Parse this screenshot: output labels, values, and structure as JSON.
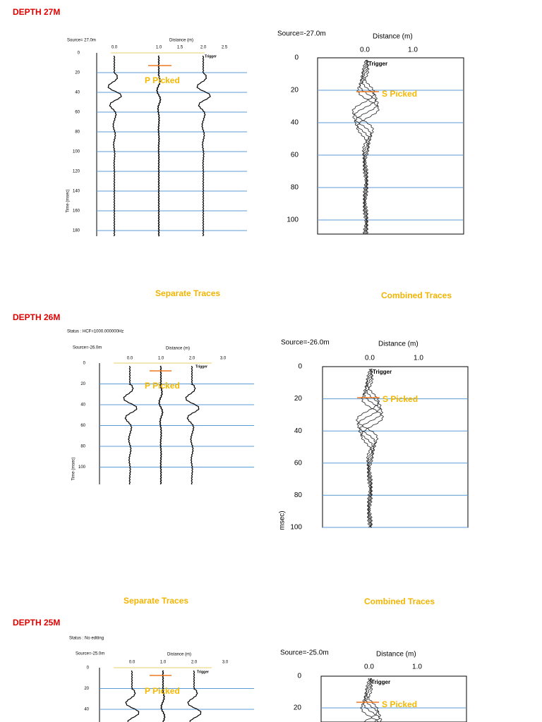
{
  "sections": [
    {
      "heading": "DEPTH 27M",
      "separate": {
        "source": "Source= 27.0m",
        "axis_label": "Distance (m)",
        "x_ticks": [
          "0.0",
          "1.0",
          "1.5",
          "2.0",
          "2.5"
        ],
        "y_ticks": [
          0,
          20,
          40,
          60,
          80,
          100,
          120,
          140,
          160,
          180
        ],
        "y_axis_label": "Time (msec)",
        "trigger": "Trigger",
        "pick": "P Picked"
      },
      "combined": {
        "source": "Source=-27.0m",
        "axis_label": "Distance (m)",
        "x_ticks": [
          "0.0",
          "1.0"
        ],
        "y_ticks": [
          0,
          20,
          40,
          60,
          80,
          100
        ],
        "trigger": "Trigger",
        "pick": "S Picked"
      },
      "captions": [
        "Separate Traces",
        "Combined Traces"
      ]
    },
    {
      "heading": "DEPTH 26M",
      "separate": {
        "status": "Status : HCF=1000.000000Hz",
        "source": "Source=-26.0m",
        "axis_label": "Distance (m)",
        "x_ticks": [
          "0.0",
          "1.0",
          "2.0",
          "3.0"
        ],
        "y_ticks": [
          0,
          20,
          40,
          60,
          80,
          100
        ],
        "y_axis_label": "Time (msec)",
        "trigger": "Trigger",
        "pick": "P Picked"
      },
      "combined": {
        "source": "Source=-26.0m",
        "axis_label": "Distance (m)",
        "x_ticks": [
          "0.0",
          "1.0"
        ],
        "y_ticks": [
          0,
          20,
          40,
          60,
          80,
          100
        ],
        "y_axis_label": "msec)",
        "trigger": "Trigger",
        "pick": "S Picked"
      },
      "captions": [
        "Separate Traces",
        "Combined Traces"
      ]
    },
    {
      "heading": "DEPTH 25M",
      "separate": {
        "status": "Status : No editing",
        "source": "Source=-25.0m",
        "axis_label": "Distance (m)",
        "x_ticks": [
          "0.0",
          "1.0",
          "2.0",
          "3.0"
        ],
        "y_ticks": [
          0,
          20,
          40
        ],
        "trigger": "Trigger",
        "pick": "P Picked"
      },
      "combined": {
        "source": "Source=-25.0m",
        "axis_label": "Distance (m)",
        "x_ticks": [
          "0.0",
          "1.0"
        ],
        "y_ticks": [
          0,
          20
        ],
        "trigger": "Trigger",
        "pick": "S Picked"
      }
    }
  ]
}
